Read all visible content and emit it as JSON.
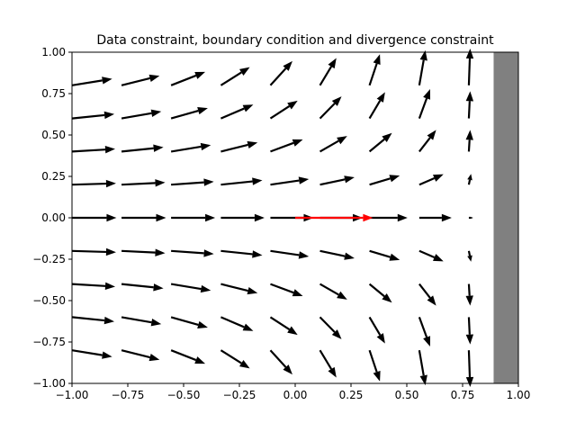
{
  "chart_data": {
    "type": "quiver",
    "title": "Data constraint, boundary condition and divergence constraint",
    "xlabel": "",
    "ylabel": "",
    "xlim": [
      -1.0,
      1.0
    ],
    "ylim": [
      -1.0,
      1.0
    ],
    "xticks": [
      "−1.00",
      "−0.75",
      "−0.50",
      "−0.25",
      "0.00",
      "0.25",
      "0.50",
      "0.75",
      "1.00"
    ],
    "yticks": [
      "−1.00",
      "−0.75",
      "−0.50",
      "−0.25",
      "0.00",
      "0.25",
      "0.50",
      "0.75",
      "1.00"
    ],
    "grid": false,
    "field": {
      "x": [
        -1.0,
        -0.778,
        -0.556,
        -0.333,
        -0.111,
        0.111,
        0.333,
        0.556,
        0.778
      ],
      "y": [
        -0.8,
        -0.6,
        -0.4,
        -0.2,
        0.0,
        0.2,
        0.4,
        0.6,
        0.8
      ],
      "color": "#000000",
      "u": [
        [
          0.093,
          0.088,
          0.079,
          0.067,
          0.051,
          0.038,
          0.024,
          0.014,
          0.003
        ],
        [
          0.098,
          0.092,
          0.085,
          0.075,
          0.063,
          0.05,
          0.036,
          0.025,
          0.003
        ],
        [
          0.1,
          0.097,
          0.092,
          0.085,
          0.075,
          0.063,
          0.052,
          0.039,
          0.003
        ],
        [
          0.102,
          0.101,
          0.099,
          0.096,
          0.089,
          0.08,
          0.07,
          0.056,
          0.005
        ],
        [
          0.103,
          0.103,
          0.102,
          0.101,
          0.1,
          0.099,
          0.088,
          0.075,
          0.01
        ],
        [
          0.102,
          0.101,
          0.099,
          0.096,
          0.089,
          0.08,
          0.07,
          0.056,
          0.005
        ],
        [
          0.1,
          0.097,
          0.092,
          0.085,
          0.075,
          0.063,
          0.052,
          0.039,
          0.003
        ],
        [
          0.098,
          0.092,
          0.085,
          0.075,
          0.063,
          0.05,
          0.036,
          0.025,
          0.003
        ],
        [
          0.093,
          0.088,
          0.079,
          0.067,
          0.051,
          0.038,
          0.024,
          0.014,
          0.003
        ]
      ],
      "v": [
        [
          -0.015,
          -0.022,
          -0.031,
          -0.042,
          -0.056,
          -0.063,
          -0.072,
          -0.081,
          -0.085
        ],
        [
          -0.01,
          -0.016,
          -0.024,
          -0.032,
          -0.041,
          -0.051,
          -0.061,
          -0.068,
          -0.063
        ],
        [
          -0.006,
          -0.01,
          -0.015,
          -0.021,
          -0.028,
          -0.036,
          -0.043,
          -0.05,
          -0.05
        ],
        [
          -0.003,
          -0.005,
          -0.007,
          -0.01,
          -0.013,
          -0.017,
          -0.021,
          -0.024,
          -0.025
        ],
        [
          0,
          0,
          0,
          0,
          0,
          0,
          0,
          0,
          0
        ],
        [
          0.003,
          0.005,
          0.007,
          0.01,
          0.013,
          0.017,
          0.021,
          0.024,
          0.025
        ],
        [
          0.006,
          0.01,
          0.015,
          0.021,
          0.028,
          0.036,
          0.043,
          0.05,
          0.05
        ],
        [
          0.01,
          0.016,
          0.024,
          0.032,
          0.041,
          0.051,
          0.061,
          0.068,
          0.063
        ],
        [
          0.015,
          0.022,
          0.031,
          0.042,
          0.056,
          0.063,
          0.072,
          0.081,
          0.085
        ]
      ]
    },
    "data_vector": {
      "x": 0.0,
      "y": 0.0,
      "u": 0.18,
      "v": 0.0,
      "color": "#ff0000"
    },
    "boundary_region": {
      "x0": 0.889,
      "x1": 1.0,
      "y0": -1.0,
      "y1": 1.0,
      "color": "#808080"
    }
  }
}
